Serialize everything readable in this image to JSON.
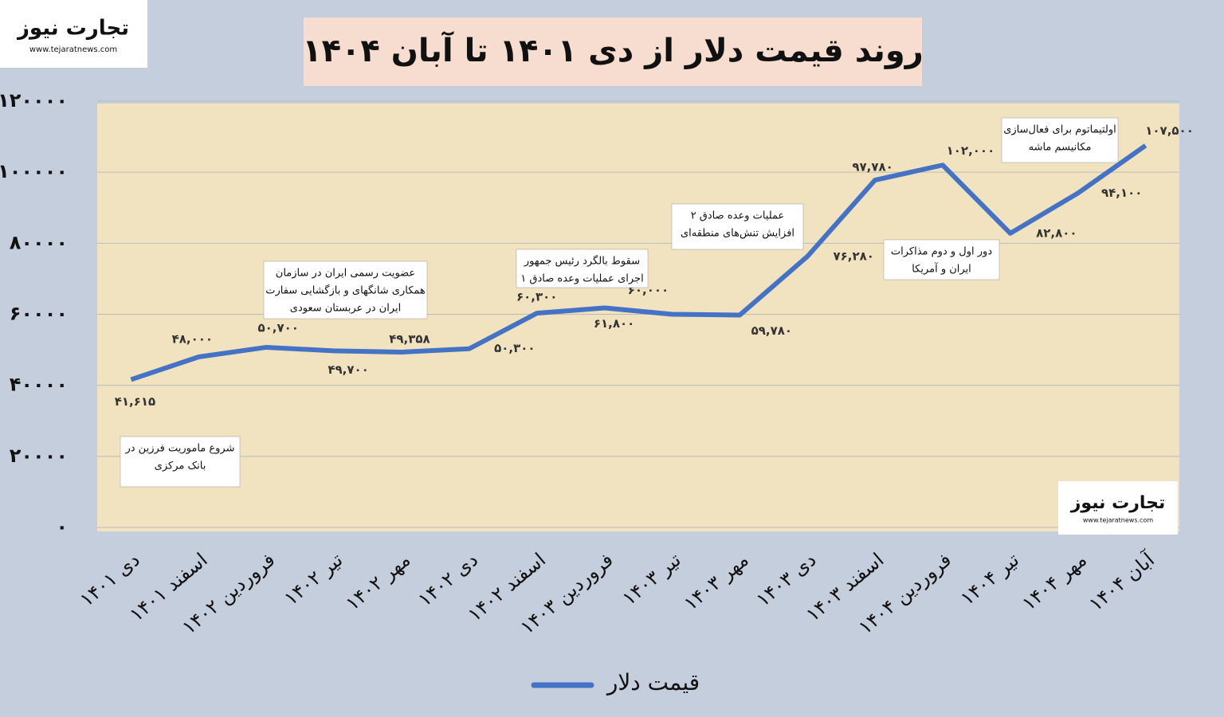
{
  "logo": {
    "name": "تجارت نیوز",
    "url": "www.tejaratnews.com"
  },
  "chart_data": {
    "type": "line",
    "title": "روند قیمت دلار از دی ۱۴۰۱ تا آبان ۱۴۰۴",
    "categories": [
      "دی ۱۴۰۱",
      "اسفند ۱۴۰۱",
      "فروردین ۱۴۰۲",
      "تیر ۱۴۰۲",
      "مهر ۱۴۰۲",
      "دی ۱۴۰۲",
      "اسفند ۱۴۰۲",
      "فروردین ۱۴۰۳",
      "تیر ۱۴۰۳",
      "مهر ۱۴۰۳",
      "دی ۱۴۰۳",
      "اسفند ۱۴۰۳",
      "فروردین ۱۴۰۴",
      "تیر ۱۴۰۴",
      "مهر ۱۴۰۴",
      "آبان ۱۴۰۴"
    ],
    "series": [
      {
        "name": "قیمت دلار",
        "color": "#4472c4",
        "values": [
          41615,
          48000,
          50700,
          49700,
          49358,
          50300,
          60300,
          61800,
          60000,
          59780,
          76280,
          97780,
          102000,
          82800,
          94100,
          107500
        ],
        "value_labels": [
          "۴۱,۶۱۵",
          "۴۸,۰۰۰",
          "۵۰,۷۰۰",
          "۴۹,۷۰۰",
          "۴۹,۳۵۸",
          "۵۰,۳۰۰",
          "۶۰,۳۰۰",
          "۶۱,۸۰۰",
          "۶۰,۰۰۰",
          "۵۹,۷۸۰",
          "۷۶,۲۸۰",
          "۹۷,۷۸۰",
          "۱۰۲,۰۰۰",
          "۸۲,۸۰۰",
          "۹۴,۱۰۰",
          "۱۰۷,۵۰۰"
        ]
      }
    ],
    "ylim": [
      0,
      120000
    ],
    "yticks": [
      {
        "value": 0,
        "label": "۰"
      },
      {
        "value": 20000,
        "label": "۲۰۰۰۰"
      },
      {
        "value": 40000,
        "label": "۴۰۰۰۰"
      },
      {
        "value": 60000,
        "label": "۶۰۰۰۰"
      },
      {
        "value": 80000,
        "label": "۸۰۰۰۰"
      },
      {
        "value": 100000,
        "label": "۱۰۰۰۰۰"
      },
      {
        "value": 120000,
        "label": "۱۲۰۰۰۰"
      }
    ],
    "grid": true,
    "annotations": [
      {
        "lines": [
          "شروع ماموریت فرزین در",
          "بانک مرکزی"
        ]
      },
      {
        "lines": [
          "عضویت رسمی ایران در سازمان",
          "همکاری شانگهای و بازگشایی سفارت",
          "ایران در عربستان سعودی"
        ]
      },
      {
        "lines": [
          "سقوط بالگرد رئیس جمهور",
          "اجرای عملیات وعده صادق ۱"
        ]
      },
      {
        "lines": [
          "عملیات وعده صادق ۲",
          "افزایش تنش‌های منطقه‌ای"
        ]
      },
      {
        "lines": [
          "دور اول و دوم مذاکرات",
          "ایران و آمریکا"
        ]
      },
      {
        "lines": [
          "اولتیماتوم برای فعال‌سازی",
          "مکانیسم ماشه"
        ]
      }
    ]
  }
}
